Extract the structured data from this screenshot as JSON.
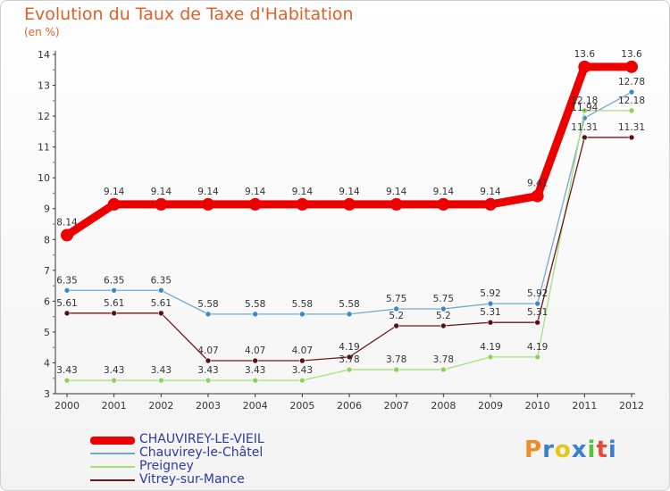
{
  "chart_data": {
    "type": "line",
    "title": "Evolution du Taux de Taxe d'Habitation",
    "subtitle": "(en %)",
    "xlabel": "",
    "ylabel": "",
    "ylim": [
      3,
      14
    ],
    "yticks": [
      3,
      4,
      5,
      6,
      7,
      8,
      9,
      10,
      11,
      12,
      13,
      14
    ],
    "categories": [
      "2000",
      "2001",
      "2002",
      "2003",
      "2004",
      "2005",
      "2006",
      "2007",
      "2008",
      "2009",
      "2010",
      "2011",
      "2012"
    ],
    "grid": false,
    "legend_position": "bottom-left",
    "series": [
      {
        "name": "CHAUVIREY-LE-VIEIL",
        "color": "#ee0000",
        "values": [
          8.14,
          9.14,
          9.14,
          9.14,
          9.14,
          9.14,
          9.14,
          9.14,
          9.14,
          9.14,
          9.41,
          13.6,
          13.6
        ],
        "labels": [
          "8.14",
          "9.14",
          "9.14",
          "9.14",
          "9.14",
          "9.14",
          "9.14",
          "9.14",
          "9.14",
          "9.14",
          "9.41",
          "13.6",
          "13.6"
        ]
      },
      {
        "name": "Chauvirey-le-Châtel",
        "color": "#6fa8d6",
        "marker": "#3f86c9",
        "values": [
          6.35,
          6.35,
          6.35,
          5.58,
          5.58,
          5.58,
          5.58,
          5.75,
          5.75,
          5.92,
          5.92,
          11.94,
          12.78
        ],
        "labels": [
          "6.35",
          "6.35",
          "6.35",
          "5.58",
          "5.58",
          "5.58",
          "5.58",
          "5.75",
          "5.75",
          "5.92",
          "5.92",
          "11.94",
          "12.78"
        ]
      },
      {
        "name": "Preigney",
        "color": "#a4e07c",
        "marker": "#8bd352",
        "values": [
          3.43,
          3.43,
          3.43,
          3.43,
          3.43,
          3.43,
          3.78,
          3.78,
          3.78,
          4.19,
          4.19,
          12.18,
          12.18
        ],
        "labels": [
          "3.43",
          "3.43",
          "3.43",
          "3.43",
          "3.43",
          "3.43",
          "3.78",
          "3.78",
          "3.78",
          "4.19",
          "4.19",
          "12.18",
          "12.18"
        ]
      },
      {
        "name": "Vitrey-sur-Mance",
        "color": "#6b1a1a",
        "marker": "#5a1010",
        "values": [
          5.61,
          5.61,
          5.61,
          4.07,
          4.07,
          4.07,
          4.19,
          5.2,
          5.2,
          5.31,
          5.31,
          11.31,
          11.31
        ],
        "labels": [
          "5.61",
          "5.61",
          "5.61",
          "4.07",
          "4.07",
          "4.07",
          "4.19",
          "5.2",
          "5.2",
          "5.31",
          "5.31",
          "11.31",
          "11.31"
        ]
      }
    ]
  },
  "logo": {
    "text": "Proxiti",
    "letters": [
      "P",
      "r",
      "o",
      "x",
      "i",
      "t",
      "i"
    ],
    "colors": [
      "#f08a24",
      "#3a7fd5",
      "#e8c51a",
      "#3a7fd5",
      "#5cbf3a",
      "#e84a3a",
      "#3a7fd5"
    ]
  }
}
